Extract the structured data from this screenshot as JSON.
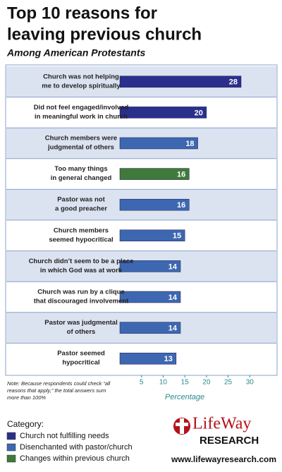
{
  "chart_data": {
    "type": "bar",
    "title": [
      "Top 10 reasons for",
      "leaving previous church"
    ],
    "subtitle": "Among American Protestants",
    "categories": [
      [
        "Church was not helping",
        "me to develop spiritually"
      ],
      [
        "Did not feel engaged/involved",
        "in meaningful work in church"
      ],
      [
        "Church members were",
        "judgmental of others"
      ],
      [
        "Too many things",
        "in general changed"
      ],
      [
        "Pastor was not",
        "a good preacher"
      ],
      [
        "Church members",
        "seemed hypocritical"
      ],
      [
        "Church didn’t seem to be a place",
        "in which God was at work"
      ],
      [
        "Church was run by a clique",
        "that discouraged involvement"
      ],
      [
        "Pastor was judgmental",
        "of others"
      ],
      [
        "Pastor seemed",
        "hypocritical"
      ]
    ],
    "values": [
      28,
      20,
      18,
      16,
      16,
      15,
      14,
      14,
      14,
      13
    ],
    "bar_colors": [
      "#2b2f8c",
      "#2b2f8c",
      "#3d67b1",
      "#3f7a3a",
      "#3d67b1",
      "#3d67b1",
      "#3d67b1",
      "#3d67b1",
      "#3d67b1",
      "#3d67b1"
    ],
    "xlim": [
      0,
      35
    ],
    "xticks": [
      5,
      10,
      15,
      20,
      25,
      30
    ],
    "xlabel": "Percentage",
    "note": [
      "Note: Because respondents could check “all",
      "reasons that apply,” the total answers sum",
      "more than 100%"
    ],
    "legend_title": "Category:",
    "legend": [
      {
        "name": "Church not fulfilling needs",
        "color": "#2b2f8c"
      },
      {
        "name": "Disenchanted with pastor/church",
        "color": "#3d67b1"
      },
      {
        "name": "Changes within previous church",
        "color": "#3f7a3a"
      }
    ]
  },
  "logo": {
    "name": "LifeWay",
    "sub": "RESEARCH",
    "url": "www.lifewayresearch.com"
  }
}
